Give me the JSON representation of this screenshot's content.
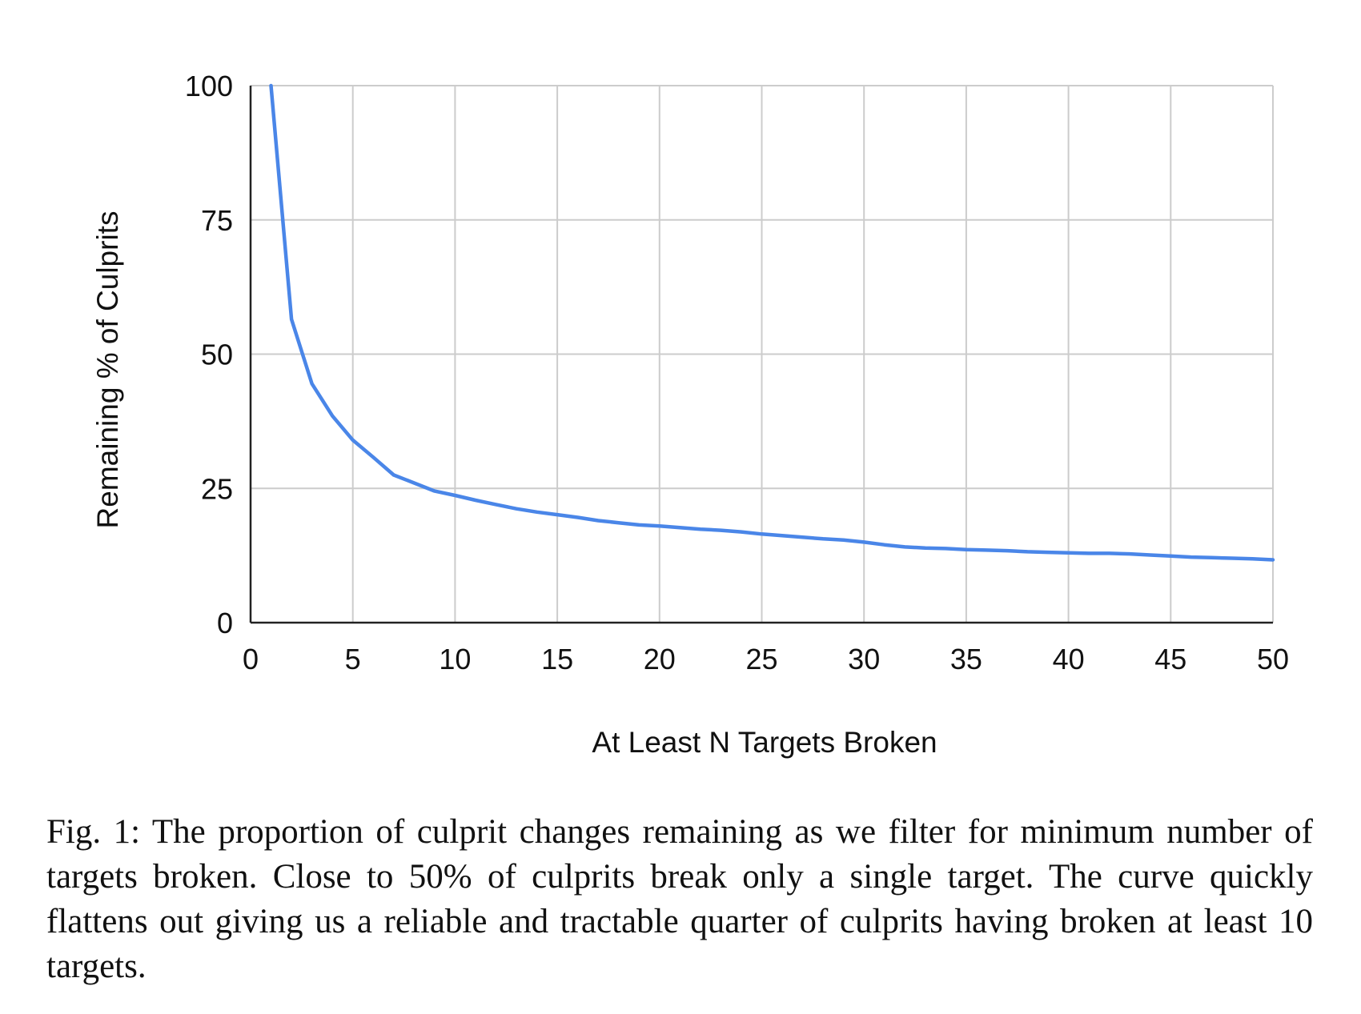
{
  "chart_data": {
    "type": "line",
    "xlabel": "At Least N Targets Broken",
    "ylabel": "Remaining % of Culprits",
    "xlim": [
      0,
      50
    ],
    "ylim": [
      0,
      100
    ],
    "xticks": [
      0,
      5,
      10,
      15,
      20,
      25,
      30,
      35,
      40,
      45,
      50
    ],
    "yticks": [
      0,
      25,
      50,
      75,
      100
    ],
    "grid": true,
    "legend": "none",
    "series": [
      {
        "color": "#4a86e8",
        "x": [
          1,
          2,
          3,
          4,
          5,
          6,
          7,
          8,
          9,
          10,
          11,
          12,
          13,
          14,
          15,
          16,
          17,
          18,
          19,
          20,
          21,
          22,
          23,
          24,
          25,
          26,
          27,
          28,
          29,
          30,
          31,
          32,
          33,
          34,
          35,
          36,
          37,
          38,
          39,
          40,
          41,
          42,
          43,
          44,
          45,
          46,
          47,
          48,
          49,
          50
        ],
        "y": [
          100,
          56.5,
          44.5,
          38.5,
          34,
          30.8,
          27.5,
          26,
          24.5,
          23.7,
          22.8,
          22,
          21.2,
          20.6,
          20.1,
          19.6,
          19,
          18.6,
          18.2,
          18,
          17.7,
          17.4,
          17.2,
          16.9,
          16.5,
          16.2,
          15.9,
          15.6,
          15.4,
          15,
          14.5,
          14.1,
          13.9,
          13.8,
          13.6,
          13.5,
          13.4,
          13.2,
          13.1,
          13,
          12.9,
          12.9,
          12.8,
          12.6,
          12.4,
          12.2,
          12.1,
          12,
          11.9,
          11.7
        ]
      }
    ]
  },
  "caption": "Fig. 1: The proportion of culprit changes remaining as we filter for minimum number of targets broken. Close to 50% of culprits break only a single target. The curve quickly flattens out giving us a reliable and tractable quarter of culprits having broken at least 10 targets."
}
